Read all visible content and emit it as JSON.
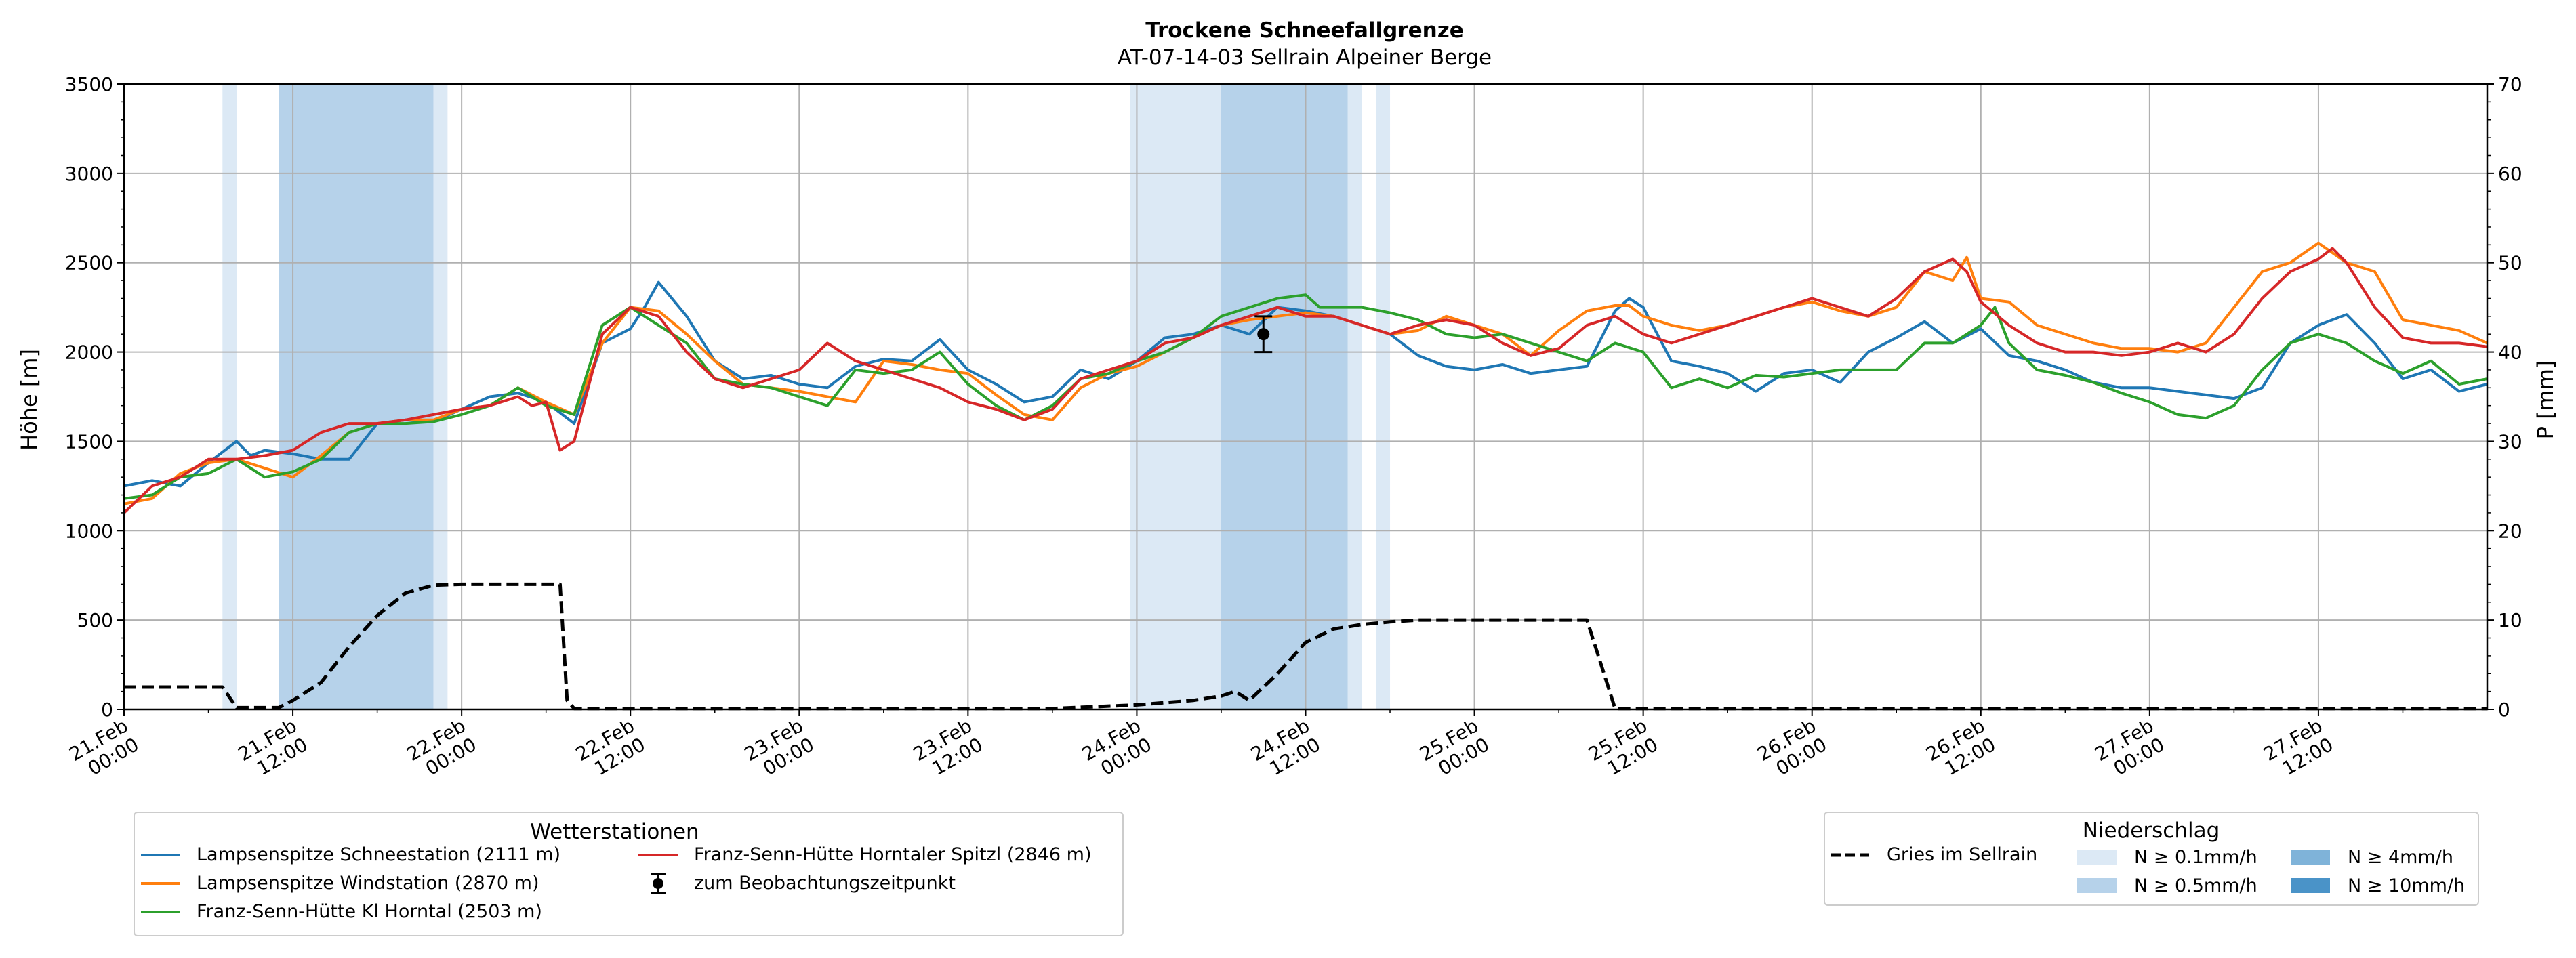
{
  "chart_data": {
    "type": "line",
    "title": "Trockene Schneefallgrenze",
    "subtitle": "AT-07-14-03 Sellrain Alpeiner Berge",
    "ylabel": "Höhe [m]",
    "y2label": "P [mm]",
    "ylim": [
      0,
      3500
    ],
    "y2lim": [
      0,
      70
    ],
    "yticks": [
      "0",
      "500",
      "1000",
      "1500",
      "2000",
      "2500",
      "3000",
      "3500"
    ],
    "y2ticks": [
      "0",
      "10",
      "20",
      "30",
      "40",
      "50",
      "60",
      "70"
    ],
    "xlim_hours": [
      0,
      168
    ],
    "x_start": "21.Feb 00:00",
    "xticks": [
      {
        "h": 0,
        "l1": "21.Feb",
        "l2": "00:00"
      },
      {
        "h": 12,
        "l1": "21.Feb",
        "l2": "12:00"
      },
      {
        "h": 24,
        "l1": "22.Feb",
        "l2": "00:00"
      },
      {
        "h": 36,
        "l1": "22.Feb",
        "l2": "12:00"
      },
      {
        "h": 48,
        "l1": "23.Feb",
        "l2": "00:00"
      },
      {
        "h": 60,
        "l1": "23.Feb",
        "l2": "12:00"
      },
      {
        "h": 72,
        "l1": "24.Feb",
        "l2": "00:00"
      },
      {
        "h": 84,
        "l1": "24.Feb",
        "l2": "12:00"
      },
      {
        "h": 96,
        "l1": "25.Feb",
        "l2": "00:00"
      },
      {
        "h": 108,
        "l1": "25.Feb",
        "l2": "12:00"
      },
      {
        "h": 120,
        "l1": "26.Feb",
        "l2": "00:00"
      },
      {
        "h": 132,
        "l1": "26.Feb",
        "l2": "12:00"
      },
      {
        "h": 144,
        "l1": "27.Feb",
        "l2": "00:00"
      },
      {
        "h": 156,
        "l1": "27.Feb",
        "l2": "12:00"
      }
    ],
    "grid": true,
    "precip_bands": [
      {
        "from": 7.0,
        "to": 8.0,
        "level": "N ≥ 0.1mm/h"
      },
      {
        "from": 11.0,
        "to": 22.0,
        "level": "N ≥ 0.5mm/h"
      },
      {
        "from": 22.0,
        "to": 23.0,
        "level": "N ≥ 0.1mm/h"
      },
      {
        "from": 71.5,
        "to": 78.0,
        "level": "N ≥ 0.1mm/h"
      },
      {
        "from": 78.0,
        "to": 87.0,
        "level": "N ≥ 0.5mm/h"
      },
      {
        "from": 87.0,
        "to": 88.0,
        "level": "N ≥ 0.1mm/h"
      },
      {
        "from": 89.0,
        "to": 90.0,
        "level": "N ≥ 0.1mm/h"
      }
    ],
    "series": [
      {
        "name": "Lampsenspitze Schneestation (2111 m)",
        "color": "#1f77b4",
        "axis": "left",
        "x": [
          0,
          2,
          4,
          6,
          8,
          9,
          10,
          12,
          14,
          16,
          18,
          20,
          22,
          24,
          26,
          28,
          30,
          32,
          34,
          36,
          37,
          38,
          40,
          42,
          44,
          46,
          48,
          50,
          52,
          54,
          56,
          58,
          60,
          62,
          64,
          66,
          68,
          70,
          72,
          74,
          76,
          78,
          80,
          82,
          84,
          86,
          88,
          90,
          92,
          94,
          96,
          98,
          100,
          102,
          104,
          106,
          107,
          108,
          110,
          112,
          114,
          116,
          118,
          120,
          122,
          124,
          126,
          128,
          130,
          132,
          134,
          136,
          138,
          140,
          142,
          144,
          146,
          148,
          150,
          152,
          154,
          156,
          158,
          160,
          162,
          164,
          166,
          168
        ],
        "y": [
          1250,
          1280,
          1250,
          1380,
          1500,
          1420,
          1450,
          1430,
          1400,
          1400,
          1600,
          1620,
          1610,
          1680,
          1750,
          1770,
          1720,
          1600,
          2050,
          2130,
          2250,
          2390,
          2200,
          1950,
          1850,
          1870,
          1820,
          1800,
          1920,
          1960,
          1950,
          2070,
          1900,
          1820,
          1720,
          1750,
          1900,
          1850,
          1950,
          2080,
          2100,
          2150,
          2100,
          2250,
          2230,
          2200,
          2150,
          2100,
          1980,
          1920,
          1900,
          1930,
          1880,
          1900,
          1920,
          2230,
          2300,
          2250,
          1950,
          1920,
          1880,
          1780,
          1880,
          1900,
          1830,
          2000,
          2080,
          2170,
          2050,
          2130,
          1980,
          1950,
          1900,
          1830,
          1800,
          1800,
          1780,
          1760,
          1740,
          1800,
          2050,
          2150,
          2210,
          2050,
          1850,
          1900,
          1780,
          1820
        ]
      },
      {
        "name": "Lampsenspitze Windstation (2870 m)",
        "color": "#ff7f0e",
        "axis": "left",
        "x": [
          0,
          2,
          4,
          6,
          8,
          10,
          12,
          14,
          16,
          18,
          20,
          22,
          24,
          26,
          28,
          30,
          32,
          34,
          36,
          38,
          40,
          42,
          44,
          46,
          48,
          50,
          52,
          54,
          56,
          58,
          60,
          62,
          64,
          66,
          68,
          70,
          72,
          74,
          76,
          78,
          80,
          82,
          84,
          86,
          88,
          90,
          92,
          94,
          96,
          98,
          100,
          102,
          104,
          106,
          107,
          108,
          110,
          112,
          114,
          116,
          118,
          120,
          122,
          124,
          126,
          128,
          130,
          131,
          132,
          134,
          136,
          138,
          140,
          142,
          144,
          146,
          148,
          150,
          152,
          154,
          156,
          158,
          160,
          162,
          164,
          166,
          168
        ],
        "y": [
          1150,
          1180,
          1320,
          1380,
          1400,
          1350,
          1300,
          1420,
          1550,
          1600,
          1620,
          1620,
          1680,
          1700,
          1800,
          1720,
          1650,
          2050,
          2250,
          2230,
          2100,
          1950,
          1820,
          1800,
          1780,
          1750,
          1720,
          1950,
          1930,
          1900,
          1880,
          1760,
          1650,
          1620,
          1800,
          1880,
          1920,
          2000,
          2080,
          2150,
          2180,
          2200,
          2220,
          2200,
          2150,
          2100,
          2120,
          2200,
          2150,
          2100,
          1980,
          2120,
          2230,
          2260,
          2260,
          2200,
          2150,
          2120,
          2150,
          2200,
          2250,
          2280,
          2230,
          2200,
          2250,
          2450,
          2400,
          2530,
          2300,
          2280,
          2150,
          2100,
          2050,
          2020,
          2020,
          2000,
          2050,
          2250,
          2450,
          2500,
          2610,
          2500,
          2450,
          2180,
          2150,
          2120,
          2050
        ]
      },
      {
        "name": "Franz-Senn-Hütte Kl Horntal (2503 m)",
        "color": "#2ca02c",
        "axis": "left",
        "x": [
          0,
          2,
          4,
          6,
          8,
          10,
          12,
          14,
          16,
          18,
          20,
          22,
          24,
          26,
          28,
          30,
          32,
          34,
          36,
          38,
          40,
          42,
          44,
          46,
          48,
          50,
          52,
          54,
          56,
          58,
          60,
          62,
          64,
          66,
          68,
          70,
          72,
          74,
          76,
          78,
          80,
          82,
          84,
          85,
          86,
          88,
          90,
          92,
          94,
          96,
          98,
          100,
          102,
          104,
          106,
          108,
          110,
          112,
          114,
          116,
          118,
          120,
          122,
          124,
          126,
          128,
          130,
          132,
          133,
          134,
          136,
          138,
          140,
          142,
          144,
          146,
          148,
          150,
          152,
          154,
          156,
          158,
          160,
          162,
          164,
          166,
          168
        ],
        "y": [
          1180,
          1200,
          1300,
          1320,
          1400,
          1300,
          1330,
          1400,
          1550,
          1600,
          1600,
          1610,
          1650,
          1700,
          1800,
          1700,
          1650,
          2150,
          2250,
          2150,
          2050,
          1850,
          1820,
          1800,
          1750,
          1700,
          1900,
          1880,
          1900,
          2000,
          1820,
          1700,
          1620,
          1700,
          1850,
          1880,
          1950,
          2000,
          2080,
          2200,
          2250,
          2300,
          2320,
          2250,
          2250,
          2250,
          2220,
          2180,
          2100,
          2080,
          2100,
          2050,
          2000,
          1950,
          2050,
          2000,
          1800,
          1850,
          1800,
          1870,
          1860,
          1880,
          1900,
          1900,
          1900,
          2050,
          2050,
          2150,
          2250,
          2050,
          1900,
          1870,
          1830,
          1770,
          1720,
          1650,
          1630,
          1700,
          1900,
          2050,
          2100,
          2050,
          1950,
          1880,
          1950,
          1820,
          1850
        ]
      },
      {
        "name": "Franz-Senn-Hütte Horntaler Spitzl (2846 m)",
        "color": "#d62728",
        "axis": "left",
        "x": [
          0,
          2,
          4,
          6,
          8,
          10,
          12,
          14,
          16,
          18,
          20,
          22,
          24,
          26,
          28,
          29,
          30,
          31,
          32,
          34,
          36,
          38,
          40,
          42,
          44,
          46,
          48,
          50,
          52,
          54,
          56,
          58,
          60,
          62,
          64,
          66,
          68,
          70,
          72,
          74,
          76,
          78,
          80,
          82,
          84,
          86,
          88,
          90,
          92,
          94,
          96,
          98,
          100,
          102,
          104,
          106,
          108,
          110,
          112,
          114,
          116,
          118,
          120,
          122,
          124,
          126,
          128,
          130,
          131,
          132,
          134,
          136,
          138,
          140,
          142,
          144,
          146,
          148,
          150,
          152,
          154,
          156,
          157,
          158,
          160,
          162,
          164,
          166,
          168
        ],
        "y": [
          1100,
          1250,
          1300,
          1400,
          1400,
          1420,
          1450,
          1550,
          1600,
          1600,
          1620,
          1650,
          1680,
          1700,
          1750,
          1700,
          1720,
          1450,
          1500,
          2100,
          2250,
          2200,
          2000,
          1850,
          1800,
          1850,
          1900,
          2050,
          1950,
          1900,
          1850,
          1800,
          1720,
          1680,
          1620,
          1680,
          1850,
          1900,
          1950,
          2050,
          2080,
          2150,
          2200,
          2250,
          2200,
          2200,
          2150,
          2100,
          2150,
          2180,
          2150,
          2050,
          1980,
          2020,
          2150,
          2200,
          2100,
          2050,
          2100,
          2150,
          2200,
          2250,
          2300,
          2250,
          2200,
          2300,
          2450,
          2520,
          2450,
          2280,
          2150,
          2050,
          2000,
          2000,
          1980,
          2000,
          2050,
          2000,
          2100,
          2300,
          2450,
          2520,
          2580,
          2500,
          2250,
          2080,
          2050,
          2050,
          2030
        ]
      },
      {
        "name": "Gries im Sellrain",
        "color": "#000000",
        "axis": "right",
        "dashed": true,
        "x": [
          0,
          7,
          8,
          11,
          12,
          14,
          16,
          18,
          20,
          22,
          24,
          28,
          30,
          31,
          31.5,
          32,
          34,
          40,
          48,
          60,
          66,
          72,
          76,
          78,
          79,
          80,
          82,
          84,
          86,
          88,
          90,
          92,
          96,
          100,
          103,
          104,
          106,
          112,
          120,
          168
        ],
        "y": [
          2.5,
          2.5,
          0.2,
          0.2,
          1.0,
          3.0,
          7.0,
          10.5,
          13.0,
          13.9,
          14.0,
          14.0,
          14.0,
          14.0,
          1.0,
          0.1,
          0.1,
          0.1,
          0.1,
          0.1,
          0.1,
          0.5,
          1.0,
          1.5,
          2.0,
          1.0,
          4.0,
          7.5,
          9.0,
          9.5,
          9.8,
          10.0,
          10.0,
          10.0,
          10.0,
          10.0,
          0.1,
          0.1,
          0.1,
          0.1
        ]
      }
    ],
    "observation": {
      "label": "zum Beobachtungszeitpunkt",
      "x": 81,
      "y": 2100,
      "err_low": 2000,
      "err_high": 2200
    },
    "legend_left": {
      "title": "Wetterstationen",
      "placement": "bottom-left"
    },
    "legend_right": {
      "title": "Niederschlag",
      "placement": "bottom-right",
      "precip_levels": [
        {
          "label": "N ≥ 0.1mm/h",
          "color": "#dce9f5"
        },
        {
          "label": "N ≥ 0.5mm/h",
          "color": "#b6d2ea"
        },
        {
          "label": "N ≥ 4mm/h",
          "color": "#7fb3d9"
        },
        {
          "label": "N ≥ 10mm/h",
          "color": "#4a93c8"
        }
      ]
    }
  }
}
